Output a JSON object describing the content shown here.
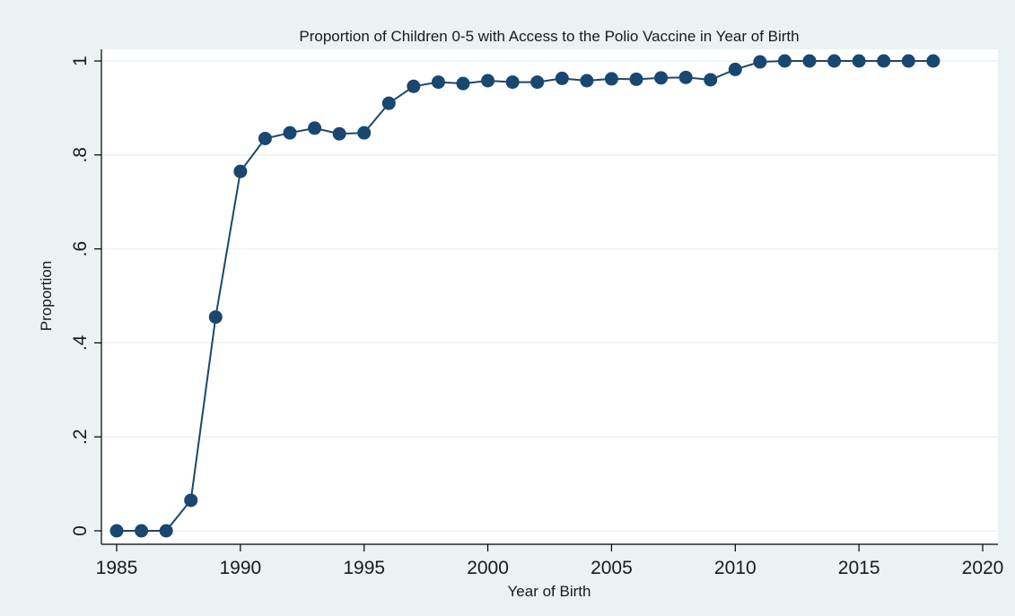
{
  "chart_data": {
    "type": "line",
    "title": "Proportion of Children 0-5 with Access to the Polio Vaccine in Year of Birth",
    "xlabel": "Year of Birth",
    "ylabel": "Proportion",
    "xlim": [
      1985,
      2020
    ],
    "ylim": [
      0,
      1
    ],
    "x_ticks": [
      1985,
      1990,
      1995,
      2000,
      2005,
      2010,
      2015,
      2020
    ],
    "x_tick_labels": [
      "1985",
      "1990",
      "1995",
      "2000",
      "2005",
      "2010",
      "2015",
      "2020"
    ],
    "y_ticks": [
      0,
      0.2,
      0.4,
      0.6,
      0.8,
      1
    ],
    "y_tick_labels": [
      "0",
      ".2",
      ".4",
      ".6",
      ".8",
      "1"
    ],
    "grid": true,
    "legend": "none",
    "series": [
      {
        "x": [
          1985,
          1986,
          1987,
          1988,
          1989,
          1990,
          1991,
          1992,
          1993,
          1994,
          1995,
          1996,
          1997,
          1998,
          1999,
          2000,
          2001,
          2002,
          2003,
          2004,
          2005,
          2006,
          2007,
          2008,
          2009,
          2010,
          2011,
          2012,
          2013,
          2014,
          2015,
          2016,
          2017,
          2018
        ],
        "y": [
          0,
          0,
          0,
          0.065,
          0.455,
          0.765,
          0.835,
          0.847,
          0.857,
          0.845,
          0.847,
          0.91,
          0.946,
          0.955,
          0.952,
          0.958,
          0.955,
          0.955,
          0.963,
          0.958,
          0.962,
          0.961,
          0.964,
          0.965,
          0.96,
          0.982,
          0.998,
          1.0,
          1.0,
          1.0,
          1.0,
          1.0,
          1.0,
          1.0
        ]
      }
    ]
  },
  "colors": {
    "line": "#1a476f",
    "marker": "#1a476f",
    "plot_background": "#ffffff",
    "outer_background": "#eaf2f3",
    "grid": "#eaf2f3",
    "axis": "#000000"
  }
}
